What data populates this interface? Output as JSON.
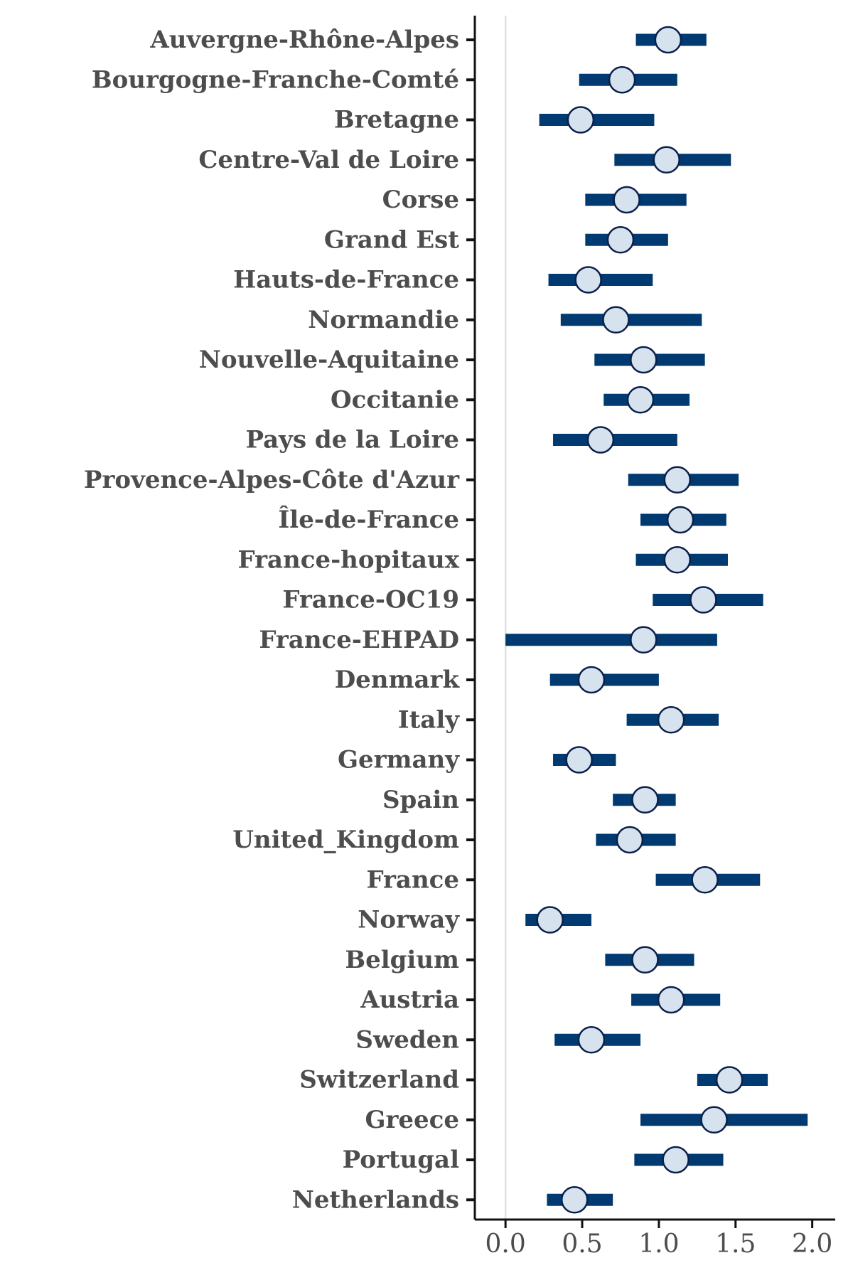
{
  "chart_data": {
    "type": "forest",
    "title": "",
    "xlabel": "",
    "ylabel": "",
    "xlim": [
      -0.2,
      2.15
    ],
    "xticks": [
      0.0,
      0.5,
      1.0,
      1.5,
      2.0
    ],
    "xtick_labels": [
      "0.0",
      "0.5",
      "1.0",
      "1.5",
      "2.0"
    ],
    "reference_line_x": 0.0,
    "grid": false,
    "legend": "none",
    "colors": {
      "interval": "#003a70",
      "point_fill": "#d6e3ee",
      "point_edge": "#0a1f4a",
      "reference": "#e0e0e0",
      "axis": "#111111",
      "label": "#4d4d4d"
    },
    "rows": [
      {
        "label": "Auvergne-Rhône-Alpes",
        "estimate": 1.06,
        "low": 0.85,
        "high": 1.31
      },
      {
        "label": "Bourgogne-Franche-Comté",
        "estimate": 0.76,
        "low": 0.48,
        "high": 1.12
      },
      {
        "label": "Bretagne",
        "estimate": 0.49,
        "low": 0.22,
        "high": 0.97
      },
      {
        "label": "Centre-Val de Loire",
        "estimate": 1.05,
        "low": 0.71,
        "high": 1.47
      },
      {
        "label": "Corse",
        "estimate": 0.79,
        "low": 0.52,
        "high": 1.18
      },
      {
        "label": "Grand Est",
        "estimate": 0.75,
        "low": 0.52,
        "high": 1.06
      },
      {
        "label": "Hauts-de-France",
        "estimate": 0.54,
        "low": 0.28,
        "high": 0.96
      },
      {
        "label": "Normandie",
        "estimate": 0.72,
        "low": 0.36,
        "high": 1.28
      },
      {
        "label": "Nouvelle-Aquitaine",
        "estimate": 0.9,
        "low": 0.58,
        "high": 1.3
      },
      {
        "label": "Occitanie",
        "estimate": 0.88,
        "low": 0.64,
        "high": 1.2
      },
      {
        "label": "Pays de la Loire",
        "estimate": 0.62,
        "low": 0.31,
        "high": 1.12
      },
      {
        "label": "Provence-Alpes-Côte d'Azur",
        "estimate": 1.12,
        "low": 0.8,
        "high": 1.52
      },
      {
        "label": "Île-de-France",
        "estimate": 1.14,
        "low": 0.88,
        "high": 1.44
      },
      {
        "label": "France-hopitaux",
        "estimate": 1.12,
        "low": 0.85,
        "high": 1.45
      },
      {
        "label": "France-OC19",
        "estimate": 1.29,
        "low": 0.96,
        "high": 1.68
      },
      {
        "label": "France-EHPAD",
        "estimate": 0.9,
        "low": 0.0,
        "high": 1.38
      },
      {
        "label": "Denmark",
        "estimate": 0.56,
        "low": 0.29,
        "high": 1.0
      },
      {
        "label": "Italy",
        "estimate": 1.08,
        "low": 0.79,
        "high": 1.39
      },
      {
        "label": "Germany",
        "estimate": 0.48,
        "low": 0.31,
        "high": 0.72
      },
      {
        "label": "Spain",
        "estimate": 0.91,
        "low": 0.7,
        "high": 1.11
      },
      {
        "label": "United_Kingdom",
        "estimate": 0.81,
        "low": 0.59,
        "high": 1.11
      },
      {
        "label": "France",
        "estimate": 1.3,
        "low": 0.98,
        "high": 1.66
      },
      {
        "label": "Norway",
        "estimate": 0.29,
        "low": 0.13,
        "high": 0.56
      },
      {
        "label": "Belgium",
        "estimate": 0.91,
        "low": 0.65,
        "high": 1.23
      },
      {
        "label": "Austria",
        "estimate": 1.08,
        "low": 0.82,
        "high": 1.4
      },
      {
        "label": "Sweden",
        "estimate": 0.56,
        "low": 0.32,
        "high": 0.88
      },
      {
        "label": "Switzerland",
        "estimate": 1.46,
        "low": 1.25,
        "high": 1.71
      },
      {
        "label": "Greece",
        "estimate": 1.36,
        "low": 0.88,
        "high": 1.97
      },
      {
        "label": "Portugal",
        "estimate": 1.11,
        "low": 0.84,
        "high": 1.42
      },
      {
        "label": "Netherlands",
        "estimate": 0.45,
        "low": 0.27,
        "high": 0.7
      }
    ]
  }
}
